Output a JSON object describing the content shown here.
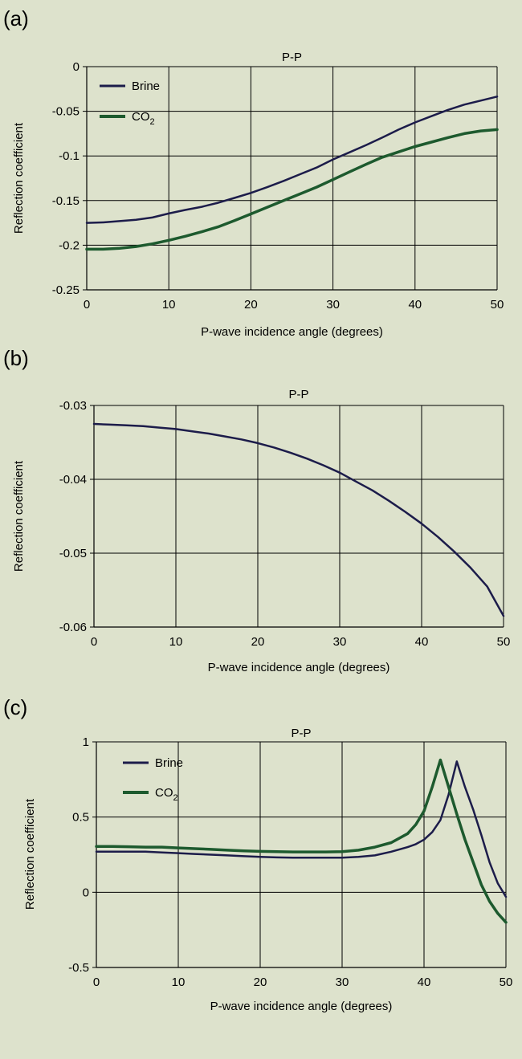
{
  "chart_data": [
    {
      "panel": "(a)",
      "type": "line",
      "title": "P-P",
      "xlabel": "P-wave incidence angle (degrees)",
      "ylabel": "Reflection coefficient",
      "xlim": [
        0,
        50
      ],
      "ylim": [
        -0.25,
        0
      ],
      "xticks": [
        0,
        10,
        20,
        30,
        40,
        50
      ],
      "yticks": [
        0,
        -0.05,
        -0.1,
        -0.15,
        -0.2,
        -0.25
      ],
      "ytick_labels": [
        "0",
        "-0.05",
        "-0.1",
        "-0.15",
        "-0.2",
        "-0.25"
      ],
      "grid": "vertical and horizontal",
      "legend": "top-left",
      "x": [
        0,
        2,
        4,
        6,
        8,
        10,
        12,
        14,
        16,
        18,
        20,
        22,
        24,
        26,
        28,
        30,
        32,
        34,
        36,
        38,
        40,
        42,
        44,
        46,
        48,
        50
      ],
      "series": [
        {
          "name": "Brine",
          "name_sub": "",
          "color": "#1c1c4a",
          "values": [
            -0.175,
            -0.1745,
            -0.173,
            -0.1715,
            -0.169,
            -0.1645,
            -0.1605,
            -0.157,
            -0.1525,
            -0.147,
            -0.1415,
            -0.135,
            -0.128,
            -0.1205,
            -0.113,
            -0.104,
            -0.096,
            -0.088,
            -0.0795,
            -0.0705,
            -0.0625,
            -0.0555,
            -0.0485,
            -0.0425,
            -0.038,
            -0.0335
          ]
        },
        {
          "name": "CO",
          "name_sub": "2",
          "color": "#1d5a2e",
          "values": [
            -0.2045,
            -0.2045,
            -0.2035,
            -0.2015,
            -0.1985,
            -0.1945,
            -0.19,
            -0.185,
            -0.1795,
            -0.1725,
            -0.165,
            -0.1575,
            -0.15,
            -0.1425,
            -0.135,
            -0.1265,
            -0.118,
            -0.1095,
            -0.1015,
            -0.0955,
            -0.0895,
            -0.0845,
            -0.0795,
            -0.075,
            -0.072,
            -0.0705
          ]
        }
      ]
    },
    {
      "panel": "(b)",
      "type": "line",
      "title": "P-P",
      "xlabel": "P-wave incidence angle (degrees)",
      "ylabel": "Reflection coefficient",
      "xlim": [
        0,
        50
      ],
      "ylim": [
        -0.06,
        -0.03
      ],
      "xticks": [
        0,
        10,
        20,
        30,
        40,
        50
      ],
      "yticks": [
        -0.03,
        -0.04,
        -0.05,
        -0.06
      ],
      "ytick_labels": [
        "-0.03",
        "-0.04",
        "-0.05",
        "-0.06"
      ],
      "grid": "vertical and horizontal",
      "legend": "none",
      "x": [
        0,
        2,
        4,
        6,
        8,
        10,
        12,
        14,
        16,
        18,
        20,
        22,
        24,
        26,
        28,
        30,
        32,
        34,
        36,
        38,
        40,
        42,
        44,
        46,
        48,
        50
      ],
      "series": [
        {
          "name": "",
          "name_sub": "",
          "color": "#1c1c4a",
          "values": [
            -0.0325,
            -0.0326,
            -0.0327,
            -0.0328,
            -0.033,
            -0.0332,
            -0.0335,
            -0.0338,
            -0.0342,
            -0.0346,
            -0.0351,
            -0.0357,
            -0.0364,
            -0.0372,
            -0.0381,
            -0.0391,
            -0.0403,
            -0.0415,
            -0.0429,
            -0.0444,
            -0.046,
            -0.0478,
            -0.0498,
            -0.052,
            -0.0545,
            -0.0585
          ]
        }
      ]
    },
    {
      "panel": "(c)",
      "type": "line",
      "title": "P-P",
      "xlabel": "P-wave incidence angle (degrees)",
      "ylabel": "Reflection coefficient",
      "xlim": [
        0,
        50
      ],
      "ylim": [
        -0.5,
        1
      ],
      "xticks": [
        0,
        10,
        20,
        30,
        40,
        50
      ],
      "yticks": [
        1,
        0.5,
        0,
        -0.5
      ],
      "ytick_labels": [
        "1",
        "0.5",
        "0",
        "-0.5"
      ],
      "grid": "vertical and horizontal",
      "legend": "top-left",
      "x": [
        0,
        2,
        4,
        6,
        8,
        10,
        12,
        14,
        16,
        18,
        20,
        22,
        24,
        26,
        28,
        30,
        32,
        34,
        36,
        38,
        39,
        40,
        41,
        42,
        43,
        44,
        45,
        46,
        47,
        48,
        49,
        50
      ],
      "series": [
        {
          "name": "Brine",
          "name_sub": "",
          "color": "#1c1c4a",
          "values": [
            0.27,
            0.27,
            0.27,
            0.27,
            0.265,
            0.26,
            0.255,
            0.25,
            0.245,
            0.24,
            0.235,
            0.232,
            0.23,
            0.23,
            0.23,
            0.23,
            0.235,
            0.245,
            0.27,
            0.3,
            0.32,
            0.35,
            0.4,
            0.48,
            0.65,
            0.87,
            0.7,
            0.55,
            0.38,
            0.2,
            0.06,
            -0.03
          ]
        },
        {
          "name": "CO",
          "name_sub": "2",
          "color": "#1d5a2e",
          "values": [
            0.305,
            0.305,
            0.303,
            0.3,
            0.3,
            0.295,
            0.29,
            0.285,
            0.28,
            0.275,
            0.272,
            0.27,
            0.268,
            0.268,
            0.268,
            0.27,
            0.28,
            0.3,
            0.33,
            0.39,
            0.45,
            0.54,
            0.7,
            0.88,
            0.7,
            0.52,
            0.35,
            0.2,
            0.05,
            -0.06,
            -0.14,
            -0.2
          ]
        }
      ]
    }
  ]
}
